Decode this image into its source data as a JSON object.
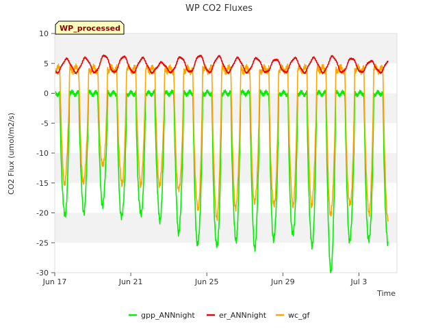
{
  "chart_data": {
    "type": "line",
    "title": "WP CO2 Fluxes",
    "badge": "WP_processed",
    "xlabel": "Time",
    "ylabel": "CO2 Flux (umol/m2/s)",
    "xlim": [
      "2023-06-17",
      "2023-07-05"
    ],
    "ylim": [
      -30,
      10
    ],
    "x_ticks": [
      {
        "label": "Jun 17",
        "date": "2023-06-17"
      },
      {
        "label": "Jun 21",
        "date": "2023-06-21"
      },
      {
        "label": "Jun 25",
        "date": "2023-06-25"
      },
      {
        "label": "Jun 29",
        "date": "2023-06-29"
      },
      {
        "label": "Jul 3",
        "date": "2023-07-03"
      }
    ],
    "y_ticks": [
      10,
      5,
      0,
      -5,
      -10,
      -15,
      -20,
      -25,
      -30
    ],
    "legend_placement": "bottom",
    "grid": "horizontal alternating bands",
    "band_color": "#f2f2f2",
    "days": [
      "Jun 17",
      "Jun 18",
      "Jun 19",
      "Jun 20",
      "Jun 21",
      "Jun 22",
      "Jun 23",
      "Jun 24",
      "Jun 25",
      "Jun 26",
      "Jun 27",
      "Jun 28",
      "Jun 29",
      "Jun 30",
      "Jul 1",
      "Jul 2",
      "Jul 3",
      "Jul 4"
    ],
    "series": [
      {
        "name": "gpp_ANNnight",
        "color": "#00ee00",
        "night_value": 0,
        "daily_min": [
          -20.5,
          -19.5,
          -18.5,
          -21,
          -20.5,
          -21,
          -23,
          -25.5,
          -26,
          -24.5,
          -25.5,
          -24.5,
          -24,
          -25.5,
          -29.5,
          -24.5,
          -25,
          -25.5
        ]
      },
      {
        "name": "er_ANNnight",
        "color": "#ee0000",
        "night_value": 3.5,
        "daily_max": [
          5.8,
          6.0,
          6.5,
          6.3,
          6.0,
          5.2,
          6.2,
          6.5,
          6.3,
          6.0,
          6.0,
          5.8,
          6.0,
          6.0,
          6.3,
          6.0,
          5.5,
          5.8
        ]
      },
      {
        "name": "wc_gf",
        "color": "#ffa500",
        "night_value": 4.0,
        "daily_min": [
          -14.8,
          -15.0,
          -12.5,
          -15.2,
          -15.0,
          -15.3,
          -16.5,
          -19.5,
          -20.5,
          -19.0,
          -18.5,
          -19.0,
          -18.5,
          -18.5,
          -20.5,
          -19.0,
          -20.0,
          -20.5
        ]
      }
    ]
  }
}
